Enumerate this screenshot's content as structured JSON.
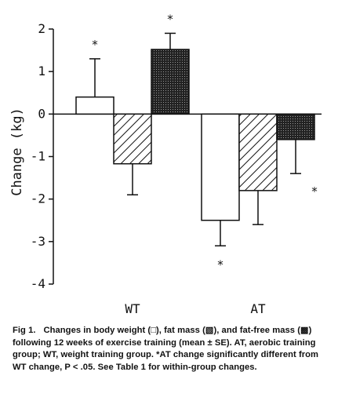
{
  "chart_data": {
    "type": "bar",
    "ylabel": "Change (kg)",
    "ylim": [
      -4,
      2
    ],
    "yticks": [
      "2",
      "1",
      "0",
      "-1",
      "-2",
      "-3",
      "-4"
    ],
    "grid": false,
    "categories": [
      "WT",
      "AT"
    ],
    "series": [
      {
        "name": "body weight",
        "pattern": "open",
        "values": [
          0.4,
          -2.5
        ],
        "se": [
          0.9,
          0.6
        ],
        "significant": [
          true,
          true
        ]
      },
      {
        "name": "fat mass",
        "pattern": "hatched",
        "values": [
          -1.17,
          -1.8
        ],
        "se": [
          0.73,
          0.8
        ],
        "significant": [
          false,
          false
        ]
      },
      {
        "name": "fat-free mass",
        "pattern": "crosshatched",
        "values": [
          1.52,
          -0.6
        ],
        "se": [
          0.38,
          0.8
        ],
        "significant": [
          true,
          true
        ]
      }
    ],
    "significance_marker": "*"
  },
  "caption": {
    "figure_number": "Fig 1.",
    "text": "Changes in body weight (□), fat mass (▧), and fat-free mass (▩) following 12 weeks of exercise training (mean ± SE). AT, aerobic training group; WT, weight training group. *AT change significantly different from WT change, P < .05. See Table 1 for within-group changes."
  }
}
